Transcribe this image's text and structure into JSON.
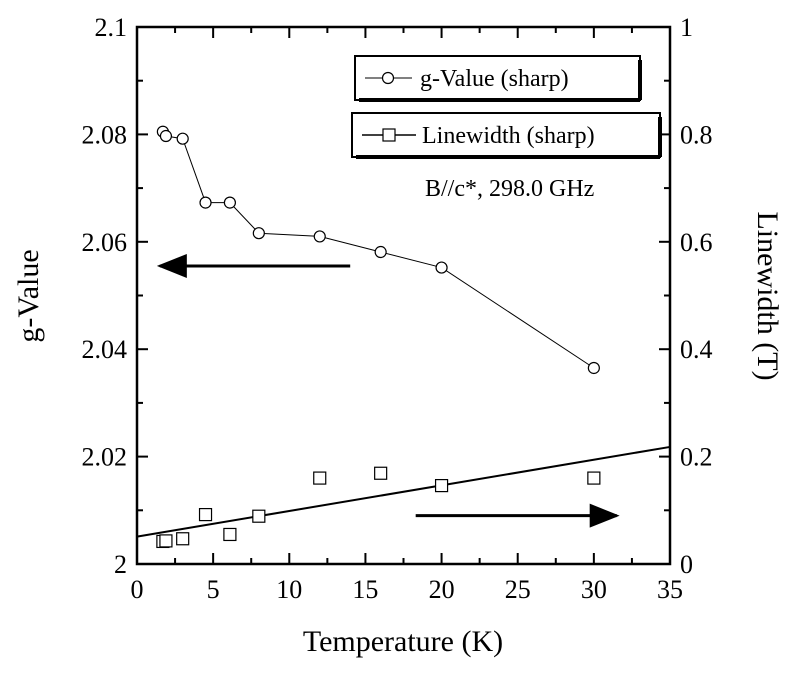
{
  "chart_data": {
    "type": "scatter",
    "xlabel": "Temperature (K)",
    "ylabel_left": "g-Value",
    "ylabel_right": "Linewidth (T)",
    "xlim": [
      0,
      35
    ],
    "ylim_left": [
      2.0,
      2.1
    ],
    "ylim_right": [
      0,
      1
    ],
    "x_ticks": [
      0,
      5,
      10,
      15,
      20,
      25,
      30,
      35
    ],
    "x_tick_labels": [
      "0",
      "5",
      "10",
      "15",
      "20",
      "25",
      "30",
      "35"
    ],
    "y_left_ticks": [
      2.0,
      2.02,
      2.04,
      2.06,
      2.08,
      2.1
    ],
    "y_left_tick_labels": [
      "2",
      "2.02",
      "2.04",
      "2.06",
      "2.08",
      "2.1"
    ],
    "y_right_ticks": [
      0,
      0.2,
      0.4,
      0.6,
      0.8,
      1.0
    ],
    "y_right_tick_labels": [
      "0",
      "0.2",
      "0.4",
      "0.6",
      "0.8",
      "1"
    ],
    "series": [
      {
        "name": "g-Value (sharp)",
        "axis": "left",
        "marker": "circle",
        "line": true,
        "x": [
          1.7,
          1.9,
          3.0,
          4.5,
          6.1,
          8.0,
          12.0,
          16.0,
          20.0,
          30.0
        ],
        "y": [
          2.0805,
          2.0797,
          2.0792,
          2.0673,
          2.0673,
          2.0616,
          2.061,
          2.0581,
          2.0552,
          2.0365
        ]
      },
      {
        "name": "Linewidth (sharp)",
        "axis": "right",
        "marker": "square",
        "line": false,
        "x": [
          1.7,
          1.9,
          3.0,
          4.5,
          6.1,
          8.0,
          12.0,
          16.0,
          20.0,
          30.0
        ],
        "y": [
          0.042,
          0.043,
          0.047,
          0.092,
          0.055,
          0.089,
          0.16,
          0.169,
          0.146,
          0.16
        ]
      },
      {
        "name": "Linewidth fit",
        "axis": "right",
        "marker": "none",
        "line": true,
        "x": [
          0,
          35
        ],
        "y": [
          0.051,
          0.218
        ]
      }
    ],
    "legend": {
      "position": "top-right",
      "entries": [
        "g-Value (sharp)",
        "Linewidth (sharp)"
      ]
    },
    "annotation": "B//c*, 298.0 GHz",
    "arrows": [
      {
        "name": "left-axis-arrow",
        "axis": "left",
        "from": [
          14,
          2.0555
        ],
        "to": [
          1.5,
          2.0555
        ]
      },
      {
        "name": "right-axis-arrow",
        "axis": "right",
        "from": [
          18.3,
          0.09
        ],
        "to": [
          31.5,
          0.09
        ]
      }
    ]
  }
}
